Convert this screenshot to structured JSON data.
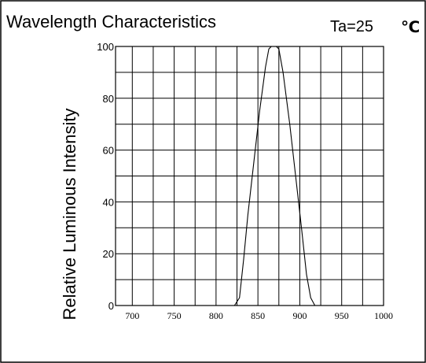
{
  "chart_data": {
    "type": "line",
    "title": "Wavelength Characteristics",
    "condition": "Ta=25",
    "condition_unit_symbol": "℃",
    "xlabel": "",
    "ylabel": "Relative Luminous Intensity",
    "xlim": [
      680,
      1000
    ],
    "ylim": [
      0,
      100
    ],
    "x_ticks": [
      700,
      750,
      800,
      850,
      900,
      950,
      1000
    ],
    "y_ticks": [
      0,
      20,
      40,
      60,
      80,
      100
    ],
    "grid": true,
    "x_gridlines": [
      700,
      725,
      750,
      775,
      800,
      825,
      850,
      875,
      900,
      925,
      950,
      975
    ],
    "y_gridlines": [
      10,
      20,
      30,
      40,
      50,
      60,
      70,
      80,
      90
    ],
    "series": [
      {
        "color": "#000000",
        "points": [
          [
            822,
            0
          ],
          [
            828,
            3
          ],
          [
            833,
            18
          ],
          [
            838,
            35
          ],
          [
            845,
            55
          ],
          [
            852,
            75
          ],
          [
            859,
            92
          ],
          [
            863,
            99
          ],
          [
            866,
            100
          ],
          [
            872,
            100
          ],
          [
            875,
            99
          ],
          [
            880,
            90
          ],
          [
            888,
            70
          ],
          [
            895,
            50
          ],
          [
            902,
            30
          ],
          [
            908,
            12
          ],
          [
            913,
            3
          ],
          [
            918,
            0
          ]
        ]
      }
    ]
  }
}
